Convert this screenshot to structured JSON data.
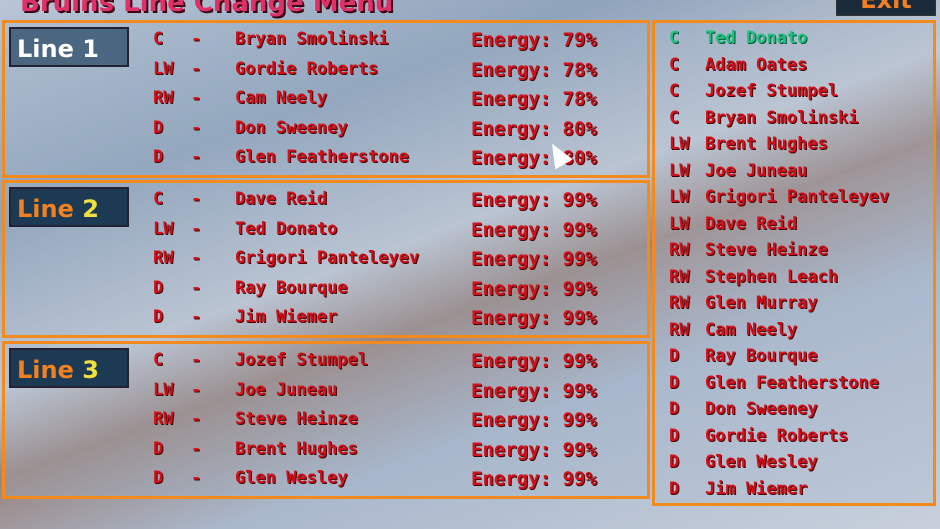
{
  "header": {
    "title": "Bruins Line Change Menu",
    "exit_label": "Exit"
  },
  "lines": [
    {
      "label": "Line",
      "number": "1",
      "players": [
        {
          "pos": "C",
          "name": "Bryan Smolinski",
          "energy": "Energy: 79%"
        },
        {
          "pos": "LW",
          "name": "Gordie Roberts",
          "energy": "Energy: 78%"
        },
        {
          "pos": "RW",
          "name": "Cam Neely",
          "energy": "Energy: 78%"
        },
        {
          "pos": "D",
          "name": "Don Sweeney",
          "energy": "Energy: 80%"
        },
        {
          "pos": "D",
          "name": "Glen Featherstone",
          "energy": "Energy: 80%"
        }
      ]
    },
    {
      "label": "Line",
      "number": "2",
      "players": [
        {
          "pos": "C",
          "name": "Dave Reid",
          "energy": "Energy: 99%"
        },
        {
          "pos": "LW",
          "name": "Ted Donato",
          "energy": "Energy: 99%"
        },
        {
          "pos": "RW",
          "name": "Grigori Panteleyev",
          "energy": "Energy: 99%"
        },
        {
          "pos": "D",
          "name": "Ray Bourque",
          "energy": "Energy: 99%"
        },
        {
          "pos": "D",
          "name": "Jim Wiemer",
          "energy": "Energy: 99%"
        }
      ]
    },
    {
      "label": "Line",
      "number": "3",
      "players": [
        {
          "pos": "C",
          "name": "Jozef Stumpel",
          "energy": "Energy: 99%"
        },
        {
          "pos": "LW",
          "name": "Joe Juneau",
          "energy": "Energy: 99%"
        },
        {
          "pos": "RW",
          "name": "Steve Heinze",
          "energy": "Energy: 99%"
        },
        {
          "pos": "D",
          "name": "Brent Hughes",
          "energy": "Energy: 99%"
        },
        {
          "pos": "D",
          "name": "Glen Wesley",
          "energy": "Energy: 99%"
        }
      ]
    }
  ],
  "dash": "-",
  "roster": [
    {
      "pos": "C",
      "name": "Ted Donato",
      "selected": true
    },
    {
      "pos": "C",
      "name": "Adam Oates"
    },
    {
      "pos": "C",
      "name": "Jozef Stumpel"
    },
    {
      "pos": "C",
      "name": "Bryan Smolinski"
    },
    {
      "pos": "LW",
      "name": "Brent Hughes"
    },
    {
      "pos": "LW",
      "name": "Joe Juneau"
    },
    {
      "pos": "LW",
      "name": "Grigori Panteleyev"
    },
    {
      "pos": "LW",
      "name": "Dave Reid"
    },
    {
      "pos": "RW",
      "name": "Steve Heinze"
    },
    {
      "pos": "RW",
      "name": "Stephen Leach"
    },
    {
      "pos": "RW",
      "name": "Glen Murray"
    },
    {
      "pos": "RW",
      "name": "Cam Neely"
    },
    {
      "pos": "D",
      "name": "Ray Bourque"
    },
    {
      "pos": "D",
      "name": "Glen Featherstone"
    },
    {
      "pos": "D",
      "name": "Don Sweeney"
    },
    {
      "pos": "D",
      "name": "Gordie Roberts"
    },
    {
      "pos": "D",
      "name": "Glen Wesley"
    },
    {
      "pos": "D",
      "name": "Jim Wiemer"
    }
  ],
  "colors": {
    "border": "#f28a1e",
    "text": "#d0101a",
    "selected": "#20c080",
    "title": "#e0306a"
  }
}
